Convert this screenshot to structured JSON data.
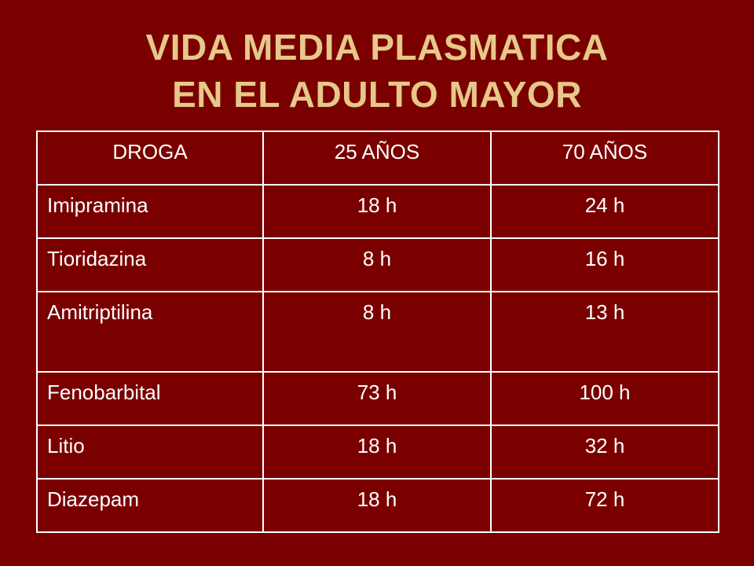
{
  "slide": {
    "title_line1": "VIDA MEDIA PLASMATICA",
    "title_line2": "EN EL ADULTO MAYOR",
    "colors": {
      "background": "#7a0000",
      "title": "#e6c88a",
      "table_text": "#ffffff",
      "table_border": "#ffffff"
    }
  },
  "table": {
    "headers": [
      "DROGA",
      "25  AÑOS",
      "70 AÑOS"
    ],
    "rows": [
      [
        "Imipramina",
        "18 h",
        "24 h"
      ],
      [
        "Tioridazina",
        "8 h",
        "16 h"
      ],
      [
        "Amitriptilina",
        "8 h",
        "13 h"
      ],
      [
        "Fenobarbital",
        "73 h",
        "100 h"
      ],
      [
        "Litio",
        "18 h",
        "32 h"
      ],
      [
        "Diazepam",
        "18 h",
        "72 h"
      ]
    ]
  }
}
